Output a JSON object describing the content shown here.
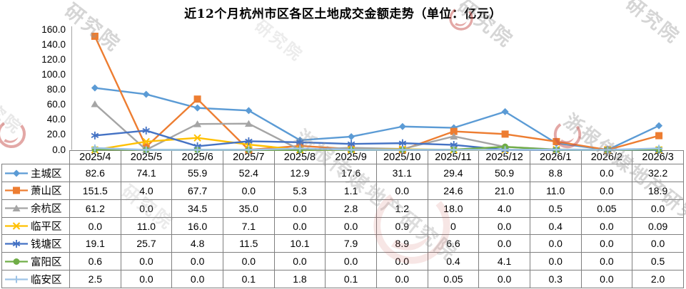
{
  "title": "近12个月杭州市区各区土地成交金额走势（单位：亿元）",
  "watermark": {
    "text": "浙报传媒地产研究院",
    "short_text": "研究院",
    "logo_color": "#c9544f"
  },
  "chart_data": {
    "type": "line",
    "title": "近12个月杭州市区各区土地成交金额走势（单位：亿元）",
    "categories": [
      "2025/4",
      "2025/5",
      "2025/6",
      "2025/7",
      "2025/8",
      "2025/9",
      "2025/10",
      "2025/11",
      "2025/12",
      "2026/1",
      "2026/2",
      "2026/3"
    ],
    "series": [
      {
        "name": "主城区",
        "color": "#5B9BD5",
        "marker": "diamond",
        "values": [
          "82.6",
          "74.1",
          "55.9",
          "52.4",
          "12.9",
          "17.6",
          "31.1",
          "29.4",
          "50.9",
          "8.8",
          "0.0",
          "32.2"
        ]
      },
      {
        "name": "萧山区",
        "color": "#ED7D31",
        "marker": "square",
        "values": [
          "151.5",
          "4.0",
          "67.7",
          "0.0",
          "5.3",
          "1.1",
          "0.0",
          "24.6",
          "21.0",
          "11.0",
          "0.0",
          "18.9"
        ]
      },
      {
        "name": "余杭区",
        "color": "#A5A5A5",
        "marker": "triangle",
        "values": [
          "61.2",
          "0.0",
          "34.5",
          "35.0",
          "0.0",
          "2.8",
          "1.2",
          "18.0",
          "4.0",
          "0.5",
          "0.05",
          "0.0"
        ]
      },
      {
        "name": "临平区",
        "color": "#FFC000",
        "marker": "x",
        "values": [
          "0.0",
          "11.0",
          "16.0",
          "7.1",
          "0.0",
          "0.0",
          "0.9",
          "0",
          "0.0",
          "0.4",
          "0.0",
          "0.09"
        ]
      },
      {
        "name": "钱塘区",
        "color": "#4472C4",
        "marker": "asterisk",
        "values": [
          "19.1",
          "25.7",
          "4.8",
          "11.5",
          "10.1",
          "7.9",
          "8.9",
          "6.6",
          "0.0",
          "0.0",
          "0.0",
          "0.0"
        ]
      },
      {
        "name": "富阳区",
        "color": "#70AD47",
        "marker": "circle",
        "values": [
          "0.6",
          "0.0",
          "0.0",
          "0.0",
          "0.0",
          "0.0",
          "0.0",
          "0.4",
          "4.1",
          "0.0",
          "0.0",
          "0.5"
        ]
      },
      {
        "name": "临安区",
        "color": "#9DC3E6",
        "marker": "plus",
        "values": [
          "2.5",
          "0.0",
          "0.0",
          "0.1",
          "1.8",
          "0.1",
          "0.0",
          "0.05",
          "0.0",
          "0.3",
          "0.0",
          "2.0"
        ]
      }
    ],
    "y_ticks": [
      "160.0",
      "140.0",
      "120.0",
      "100.0",
      "80.0",
      "60.0",
      "40.0",
      "20.0",
      "0.0"
    ],
    "ylim": [
      0,
      160
    ],
    "xlabel": "",
    "ylabel": "",
    "grid": false,
    "legend_position": "table-left-column"
  }
}
